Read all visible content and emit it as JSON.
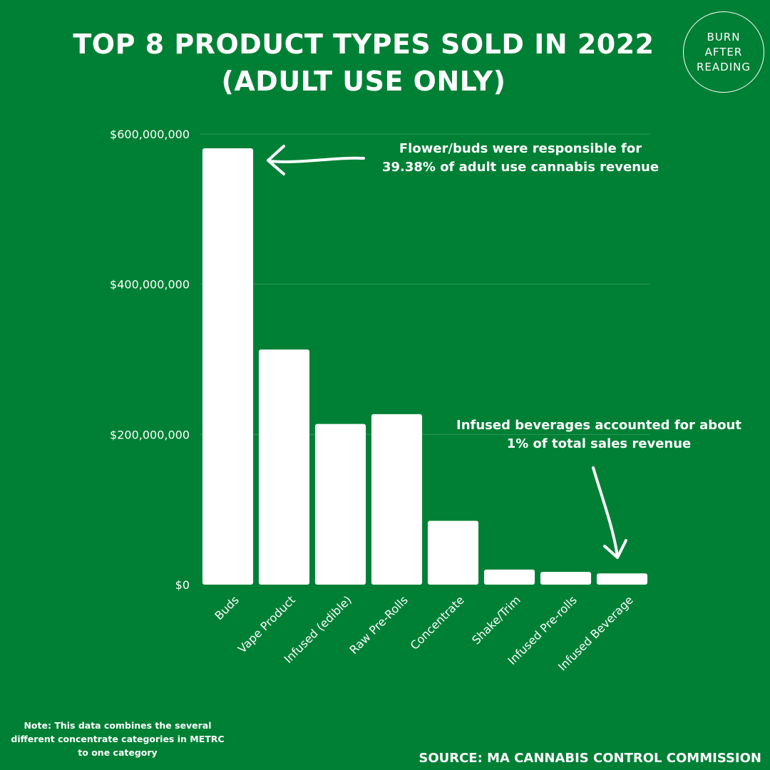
{
  "title_line1": "TOP 8 PRODUCT TYPES SOLD IN 2022",
  "title_line2": "(ADULT USE ONLY)",
  "logo": {
    "line1": "BURN",
    "line2": "AFTER",
    "line3": "READING"
  },
  "annotations": {
    "buds_line1": "Flower/buds were responsible for",
    "buds_line2": "39.38% of adult use cannabis revenue",
    "beverage_line1": "Infused beverages accounted for about",
    "beverage_line2": "1% of total sales revenue"
  },
  "note": {
    "line1": "Note: This data combines the several",
    "line2": "different concentrate categories in METRC",
    "line3": "to one category"
  },
  "source": "SOURCE: MA CANNABIS CONTROL COMMISSION",
  "colors": {
    "background": "#008035",
    "bars": "#ffffff",
    "text": "#ffffff"
  },
  "chart_data": {
    "type": "bar",
    "categories": [
      "Buds",
      "Vape Product",
      "Infused (edible)",
      "Raw Pre-Rolls",
      "Concentrate",
      "Shake/Trim",
      "Infused Pre-rolls",
      "Infused Beverage"
    ],
    "values": [
      581000000,
      313000000,
      214000000,
      227000000,
      85000000,
      20000000,
      17000000,
      15000000
    ],
    "title": "TOP 8 PRODUCT TYPES SOLD IN 2022 (ADULT USE ONLY)",
    "xlabel": "",
    "ylabel": "",
    "ylim": [
      0,
      600000000
    ],
    "y_ticks": [
      0,
      200000000,
      400000000,
      600000000
    ],
    "y_tick_labels": [
      "$0",
      "$200,000,000",
      "$400,000,000",
      "$600,000,000"
    ],
    "grid": true,
    "legend": "none"
  }
}
